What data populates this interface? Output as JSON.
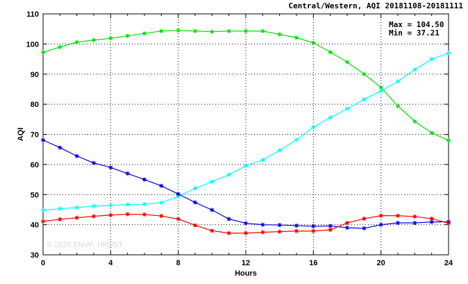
{
  "chart_data": {
    "type": "line",
    "title": "Central/Western, AQI 20181108-20181111",
    "xlabel": "Hours",
    "ylabel": "AQI",
    "xlim": [
      0,
      24
    ],
    "ylim": [
      30,
      110
    ],
    "xticks": [
      0,
      4,
      8,
      12,
      16,
      20,
      24
    ],
    "yticks": [
      30,
      40,
      50,
      60,
      70,
      80,
      90,
      100,
      110
    ],
    "grid": true,
    "stats": {
      "max": "Max = 104.50",
      "min": "Min =  37.21"
    },
    "watermark": "© 2025  ENVF, HKUST",
    "x": [
      0,
      1,
      2,
      3,
      4,
      5,
      6,
      7,
      8,
      9,
      10,
      11,
      12,
      13,
      14,
      15,
      16,
      17,
      18,
      19,
      20,
      21,
      22,
      23,
      24
    ],
    "series": [
      {
        "color": "#00e000",
        "values": [
          97.2,
          99.0,
          100.6,
          101.3,
          101.9,
          102.7,
          103.5,
          104.3,
          104.5,
          104.3,
          104.1,
          104.3,
          104.3,
          104.3,
          103.2,
          102.1,
          100.4,
          97.3,
          94.0,
          90.0,
          85.6,
          79.4,
          74.3,
          70.5,
          68.0
        ]
      },
      {
        "color": "#00ffff",
        "values": [
          44.8,
          45.3,
          45.7,
          46.2,
          46.4,
          46.7,
          46.8,
          47.3,
          49.4,
          52.1,
          54.3,
          56.6,
          59.6,
          61.5,
          64.7,
          68.2,
          72.4,
          75.6,
          78.5,
          81.6,
          84.4,
          87.6,
          91.5,
          95.0,
          97.0
        ]
      },
      {
        "color": "#0000e0",
        "values": [
          68.1,
          65.6,
          62.8,
          60.5,
          59.0,
          57.0,
          55.0,
          52.9,
          50.2,
          47.4,
          44.9,
          41.9,
          40.5,
          40.0,
          39.9,
          39.7,
          39.5,
          39.6,
          39.0,
          38.8,
          40.0,
          40.6,
          40.6,
          40.9,
          41.0
        ]
      },
      {
        "color": "#ee0000",
        "values": [
          41.1,
          41.8,
          42.3,
          42.8,
          43.2,
          43.5,
          43.4,
          42.9,
          41.9,
          39.8,
          38.0,
          37.2,
          37.2,
          37.5,
          37.7,
          37.9,
          37.9,
          38.3,
          40.6,
          42.0,
          43.0,
          43.0,
          42.7,
          42.0,
          40.5
        ]
      }
    ]
  }
}
